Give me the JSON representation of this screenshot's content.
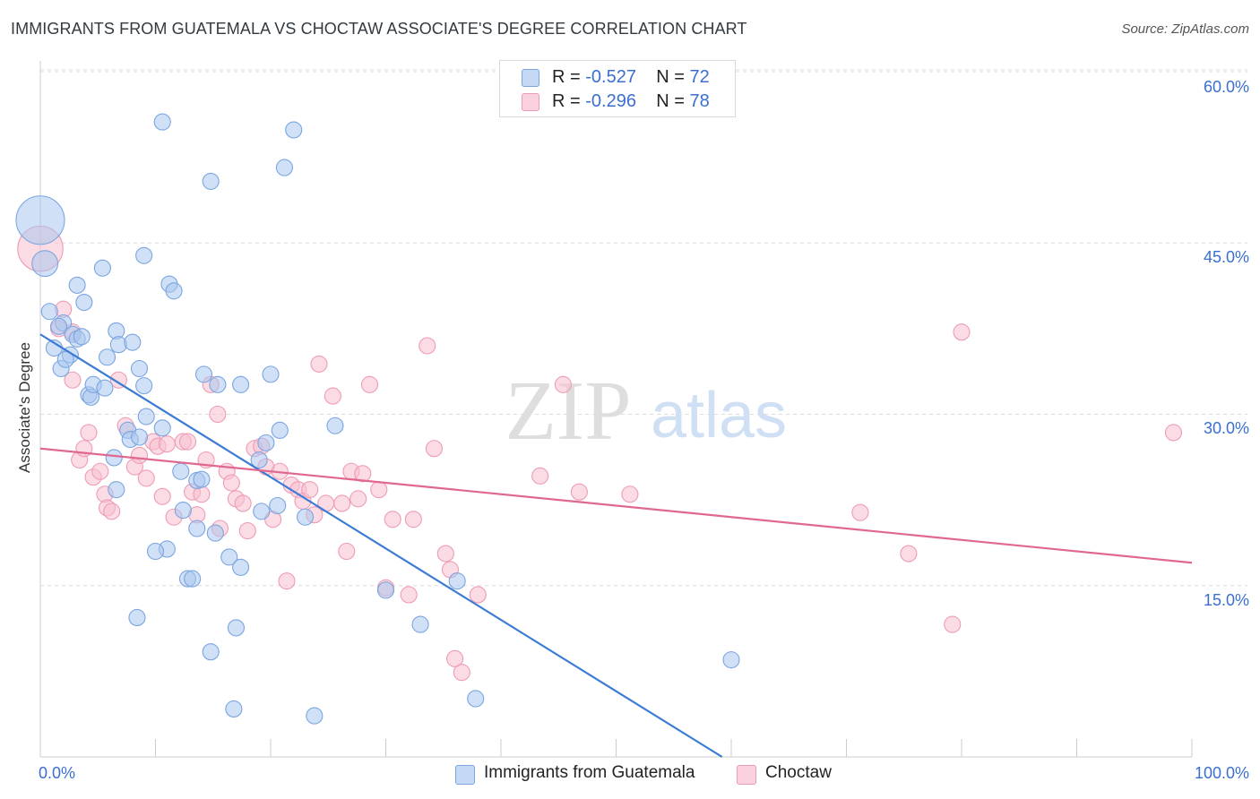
{
  "title": "IMMIGRANTS FROM GUATEMALA VS CHOCTAW ASSOCIATE'S DEGREE CORRELATION CHART",
  "source": "Source: ZipAtlas.com",
  "watermark": {
    "zip": "ZIP",
    "atlas": "atlas"
  },
  "legend": {
    "guatemala": {
      "r_label": "R = ",
      "r_value": "-0.527",
      "n_label": "N = ",
      "n_value": "72"
    },
    "choctaw": {
      "r_label": "R = ",
      "r_value": "-0.296",
      "n_label": "N = ",
      "n_value": "78"
    }
  },
  "colors": {
    "guatemala_fill": "#a9c6ef",
    "guatemala_stroke": "#7aa5e0",
    "guatemala_line": "#3a7bd5",
    "choctaw_fill": "#f7c0d0",
    "choctaw_stroke": "#ee9bb4",
    "choctaw_line": "#e06890",
    "tick_text": "#3a6fd0",
    "grid": "#dcdcdc"
  },
  "chart_data": {
    "type": "scatter",
    "title": "IMMIGRANTS FROM GUATEMALA VS CHOCTAW ASSOCIATE'S DEGREE CORRELATION CHART",
    "xlabel": "",
    "ylabel": "Associate's Degree",
    "xlim": [
      0,
      100
    ],
    "ylim": [
      0,
      62
    ],
    "x_tick_labels": [
      "0.0%",
      "100.0%"
    ],
    "y_ticks": [
      15,
      30,
      45,
      60
    ],
    "y_tick_labels": [
      "15.0%",
      "30.0%",
      "45.0%",
      "60.0%"
    ],
    "grid": true,
    "legend_position": "top-center",
    "series": [
      {
        "name": "Immigrants from Guatemala",
        "r": -0.527,
        "n": 72,
        "trend": {
          "x": [
            0,
            59.2
          ],
          "y": [
            37.0,
            0.0
          ]
        },
        "points": [
          [
            0,
            47,
            3
          ],
          [
            0.4,
            43.2,
            1.6
          ],
          [
            0.8,
            39,
            1
          ],
          [
            2,
            38,
            1
          ],
          [
            1.2,
            35.8,
            1
          ],
          [
            2.6,
            35.2,
            1
          ],
          [
            2.8,
            37.0,
            1
          ],
          [
            3.2,
            36.6,
            1
          ],
          [
            3.6,
            36.8,
            1
          ],
          [
            1.8,
            34.0,
            1
          ],
          [
            2.2,
            34.8,
            1
          ],
          [
            3.8,
            39.8,
            1
          ],
          [
            3.2,
            41.3,
            1
          ],
          [
            5.4,
            42.8,
            1
          ],
          [
            4.2,
            31.7,
            1
          ],
          [
            4.4,
            31.5,
            1
          ],
          [
            4.6,
            32.6,
            1
          ],
          [
            5.6,
            32.3,
            1
          ],
          [
            5.8,
            35.0,
            1
          ],
          [
            6.6,
            37.3,
            1
          ],
          [
            6.8,
            36.1,
            1
          ],
          [
            8.0,
            36.3,
            1
          ],
          [
            8.6,
            34.0,
            1
          ],
          [
            9.0,
            32.5,
            1
          ],
          [
            9.2,
            29.8,
            1
          ],
          [
            10.6,
            28.8,
            1
          ],
          [
            7.6,
            28.6,
            1
          ],
          [
            7.8,
            27.8,
            1
          ],
          [
            8.6,
            28.0,
            1
          ],
          [
            11.2,
            41.4,
            1
          ],
          [
            11.6,
            40.8,
            1
          ],
          [
            9.0,
            43.9,
            1
          ],
          [
            10.6,
            55.6,
            1
          ],
          [
            14.8,
            50.4,
            1
          ],
          [
            21.2,
            51.6,
            1
          ],
          [
            22.0,
            54.9,
            1
          ],
          [
            6.4,
            26.2,
            1
          ],
          [
            6.6,
            23.4,
            1
          ],
          [
            12.2,
            25.0,
            1
          ],
          [
            13.6,
            24.2,
            1
          ],
          [
            14.0,
            24.3,
            1
          ],
          [
            14.2,
            33.5,
            1
          ],
          [
            15.4,
            32.6,
            1
          ],
          [
            17.4,
            32.6,
            1
          ],
          [
            20.0,
            33.5,
            1
          ],
          [
            19.0,
            26.0,
            1
          ],
          [
            19.6,
            27.5,
            1
          ],
          [
            20.8,
            28.6,
            1
          ],
          [
            25.6,
            29.0,
            1
          ],
          [
            12.4,
            21.6,
            1
          ],
          [
            13.6,
            20.0,
            1
          ],
          [
            15.2,
            19.6,
            1
          ],
          [
            11.0,
            18.2,
            1
          ],
          [
            10.0,
            18.0,
            1
          ],
          [
            16.4,
            17.5,
            1
          ],
          [
            17.4,
            16.6,
            1
          ],
          [
            12.8,
            15.6,
            1
          ],
          [
            13.2,
            15.6,
            1
          ],
          [
            19.2,
            21.5,
            1
          ],
          [
            20.6,
            22.0,
            1
          ],
          [
            23.0,
            21.0,
            1
          ],
          [
            8.4,
            12.2,
            1
          ],
          [
            17.0,
            11.3,
            1
          ],
          [
            14.8,
            9.2,
            1
          ],
          [
            16.8,
            4.2,
            1
          ],
          [
            23.8,
            3.6,
            1
          ],
          [
            30.0,
            14.6,
            1
          ],
          [
            33.0,
            11.6,
            1
          ],
          [
            36.2,
            15.4,
            1
          ],
          [
            37.8,
            5.1,
            1
          ],
          [
            60.0,
            8.5,
            1
          ],
          [
            1.6,
            37.7,
            1
          ]
        ]
      },
      {
        "name": "Choctaw",
        "r": -0.296,
        "n": 78,
        "trend": {
          "x": [
            0,
            100
          ],
          "y": [
            27.0,
            17.0
          ]
        },
        "points": [
          [
            0,
            44.5,
            2.8
          ],
          [
            1.6,
            37.5,
            1
          ],
          [
            2.0,
            39.2,
            1
          ],
          [
            2.8,
            37.2,
            1
          ],
          [
            2.8,
            33.0,
            1
          ],
          [
            3.4,
            26.0,
            1
          ],
          [
            3.8,
            27.0,
            1
          ],
          [
            4.2,
            28.4,
            1
          ],
          [
            4.6,
            24.5,
            1
          ],
          [
            5.2,
            25.0,
            1
          ],
          [
            5.6,
            23.0,
            1
          ],
          [
            5.8,
            21.8,
            1
          ],
          [
            6.2,
            21.5,
            1
          ],
          [
            6.8,
            33.0,
            1
          ],
          [
            7.4,
            29.0,
            1
          ],
          [
            8.2,
            25.4,
            1
          ],
          [
            8.6,
            26.4,
            1
          ],
          [
            9.2,
            24.4,
            1
          ],
          [
            9.8,
            27.6,
            1
          ],
          [
            10.2,
            27.2,
            1
          ],
          [
            10.6,
            22.8,
            1
          ],
          [
            11.0,
            27.4,
            1
          ],
          [
            11.6,
            21.0,
            1
          ],
          [
            12.4,
            27.6,
            1
          ],
          [
            12.8,
            27.6,
            1
          ],
          [
            13.2,
            23.2,
            1
          ],
          [
            13.6,
            21.2,
            1
          ],
          [
            14.0,
            23.0,
            1
          ],
          [
            14.4,
            26.0,
            1
          ],
          [
            14.8,
            32.6,
            1
          ],
          [
            15.4,
            30.0,
            1
          ],
          [
            15.6,
            20.0,
            1
          ],
          [
            16.2,
            25.0,
            1
          ],
          [
            16.6,
            24.0,
            1
          ],
          [
            17.0,
            22.6,
            1
          ],
          [
            17.6,
            22.2,
            1
          ],
          [
            18.0,
            19.8,
            1
          ],
          [
            18.6,
            27.0,
            1
          ],
          [
            19.2,
            27.2,
            1
          ],
          [
            19.6,
            25.4,
            1
          ],
          [
            20.2,
            20.8,
            1
          ],
          [
            20.8,
            25.0,
            1
          ],
          [
            21.4,
            15.4,
            1
          ],
          [
            21.8,
            23.8,
            1
          ],
          [
            22.4,
            23.4,
            1
          ],
          [
            22.8,
            22.4,
            1
          ],
          [
            23.4,
            23.4,
            1
          ],
          [
            23.8,
            21.2,
            1
          ],
          [
            24.2,
            34.4,
            1
          ],
          [
            24.8,
            22.2,
            1
          ],
          [
            25.4,
            31.6,
            1
          ],
          [
            26.2,
            22.2,
            1
          ],
          [
            26.6,
            18.0,
            1
          ],
          [
            27.0,
            25.0,
            1
          ],
          [
            27.6,
            22.6,
            1
          ],
          [
            28.0,
            24.8,
            1
          ],
          [
            28.6,
            32.6,
            1
          ],
          [
            29.4,
            23.4,
            1
          ],
          [
            30.0,
            14.8,
            1
          ],
          [
            30.6,
            20.8,
            1
          ],
          [
            32.0,
            14.2,
            1
          ],
          [
            32.4,
            20.8,
            1
          ],
          [
            33.6,
            36.0,
            1
          ],
          [
            34.2,
            27.0,
            1
          ],
          [
            35.2,
            17.8,
            1
          ],
          [
            35.6,
            16.4,
            1
          ],
          [
            36.0,
            8.6,
            1
          ],
          [
            36.6,
            7.4,
            1
          ],
          [
            38.0,
            14.2,
            1
          ],
          [
            43.4,
            24.6,
            1
          ],
          [
            45.4,
            32.6,
            1
          ],
          [
            46.8,
            23.2,
            1
          ],
          [
            51.2,
            23.0,
            1
          ],
          [
            71.2,
            21.4,
            1
          ],
          [
            75.4,
            17.8,
            1
          ],
          [
            79.2,
            11.6,
            1
          ],
          [
            80.0,
            37.2,
            1
          ],
          [
            98.4,
            28.4,
            1
          ]
        ]
      }
    ]
  },
  "labels": {
    "y_axis": "Associate's Degree",
    "x_min": "0.0%",
    "x_max": "100.0%",
    "y_ticks": [
      "15.0%",
      "30.0%",
      "45.0%",
      "60.0%"
    ],
    "bottom_legend_guatemala": "Immigrants from Guatemala",
    "bottom_legend_choctaw": "Choctaw"
  }
}
